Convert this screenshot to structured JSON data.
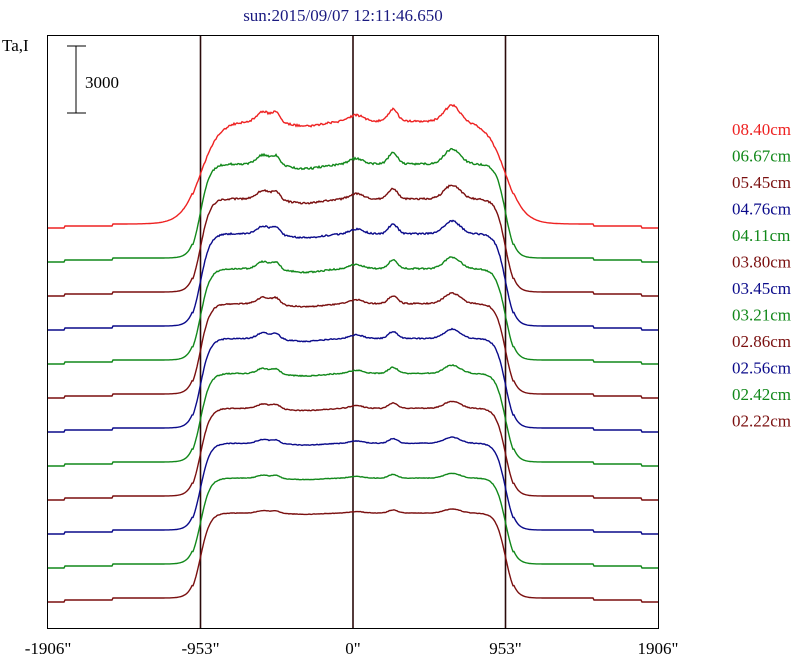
{
  "chart_data": {
    "type": "line",
    "title": "sun:2015/09/07 12:11:46.650",
    "ylabel": "Ta,I",
    "scale_bar_label": "3000",
    "scale_bar_value": 3000,
    "xlim": [
      -1906,
      1906
    ],
    "x_ticks": [
      -1906,
      -953,
      0,
      953,
      1906
    ],
    "x_tick_labels": [
      "-1906\"",
      "-953\"",
      "0\"",
      "953\"",
      "1906\""
    ],
    "vertical_lines": [
      -953,
      0,
      953
    ],
    "grid": false,
    "legend_position": "right",
    "colors": {
      "red": "#ee2222",
      "green": "#11881a",
      "darkred": "#7a0f0f",
      "blue": "#0a0a8a",
      "axis": "#000000",
      "title": "#1a1a80"
    },
    "series": [
      {
        "name": "08.40cm",
        "color": "#ee2222"
      },
      {
        "name": "06.67cm",
        "color": "#11881a"
      },
      {
        "name": "05.45cm",
        "color": "#7a0f0f"
      },
      {
        "name": "04.76cm",
        "color": "#0a0a8a"
      },
      {
        "name": "04.11cm",
        "color": "#11881a"
      },
      {
        "name": "03.80cm",
        "color": "#7a0f0f"
      },
      {
        "name": "03.45cm",
        "color": "#0a0a8a"
      },
      {
        "name": "03.21cm",
        "color": "#11881a"
      },
      {
        "name": "02.86cm",
        "color": "#7a0f0f"
      },
      {
        "name": "02.56cm",
        "color": "#0a0a8a"
      },
      {
        "name": "02.42cm",
        "color": "#11881a"
      },
      {
        "name": "02.22cm",
        "color": "#7a0f0f"
      }
    ]
  }
}
